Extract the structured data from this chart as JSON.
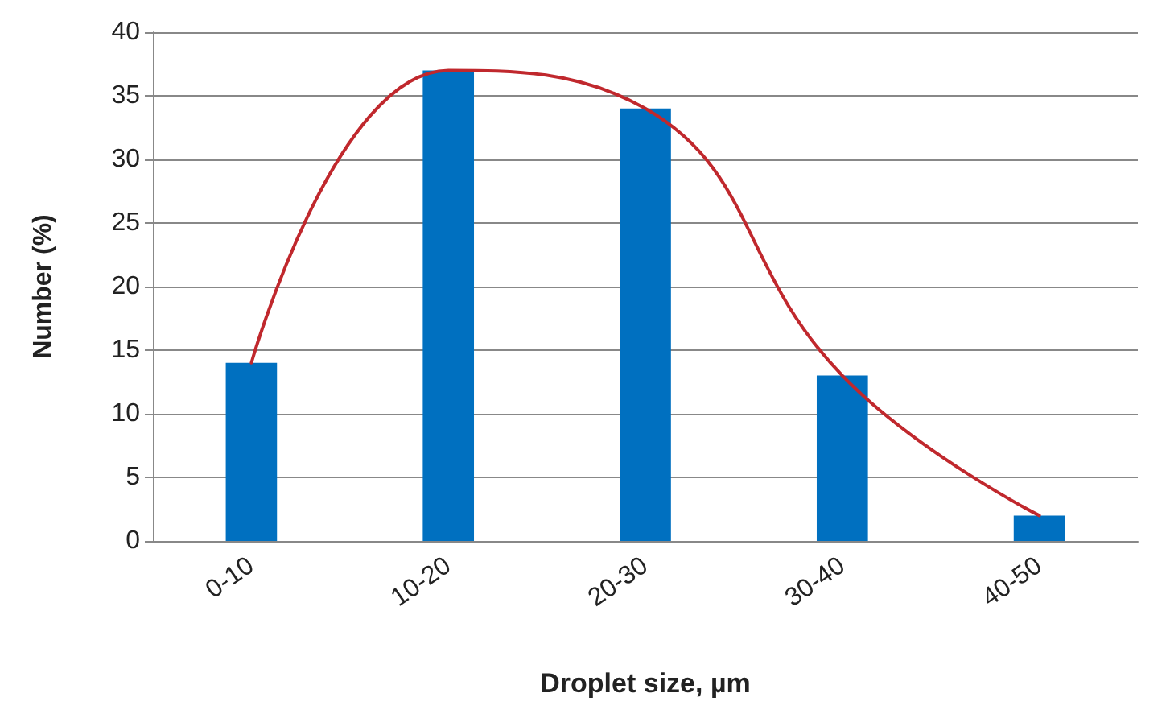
{
  "chart_data": {
    "type": "bar",
    "xlabel": "Droplet size, µm",
    "ylabel": "Number (%)",
    "categories": [
      "0-10",
      "10-20",
      "20-30",
      "30-40",
      "40-50"
    ],
    "series": [
      {
        "color": "#0070c0",
        "values": [
          14,
          37,
          34,
          13,
          2
        ]
      },
      {
        "type": "line",
        "color": "#c0282d",
        "values": [
          14,
          37,
          34,
          13,
          2
        ]
      }
    ],
    "ylim": [
      0,
      40
    ],
    "yticks": [
      0,
      5,
      10,
      15,
      20,
      25,
      30,
      35,
      40
    ],
    "grid": "y",
    "marker": "none",
    "line_style": "solid"
  }
}
